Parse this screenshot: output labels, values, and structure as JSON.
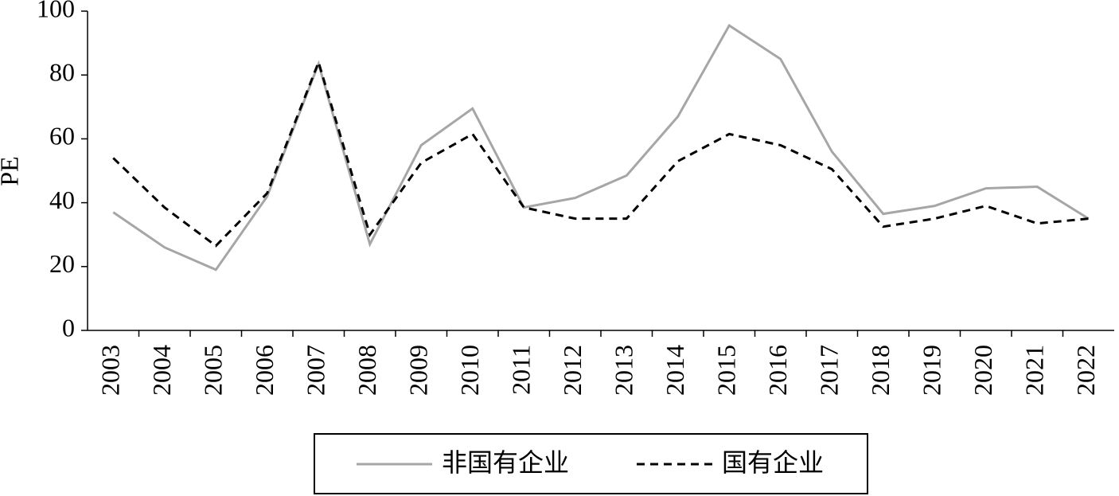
{
  "chart_data": {
    "type": "line",
    "y_label": "PE",
    "categories": [
      "2003",
      "2004",
      "2005",
      "2006",
      "2007",
      "2008",
      "2009",
      "2010",
      "2011",
      "2012",
      "2013",
      "2014",
      "2015",
      "2016",
      "2017",
      "2018",
      "2019",
      "2020",
      "2021",
      "2022"
    ],
    "series": [
      {
        "name": "非国有企业",
        "color": "#a6a6a6",
        "line_style": "solid",
        "values": [
          37,
          26,
          19,
          42,
          83.5,
          27,
          58,
          69.5,
          38.5,
          41.5,
          48.5,
          67,
          95.5,
          85,
          56,
          36.5,
          39,
          44.5,
          45,
          35
        ]
      },
      {
        "name": "国有企业",
        "color": "#000000",
        "line_style": "dashed",
        "values": [
          54,
          38.5,
          26.5,
          43,
          84,
          30,
          52.5,
          61.5,
          38.5,
          35,
          35,
          53,
          61.5,
          58,
          50.5,
          32.5,
          35,
          39,
          33.5,
          35
        ]
      }
    ],
    "ylim": [
      0,
      100
    ],
    "yticks": [
      0,
      20,
      40,
      60,
      80,
      100
    ],
    "grid": false,
    "legend": "bottom"
  }
}
